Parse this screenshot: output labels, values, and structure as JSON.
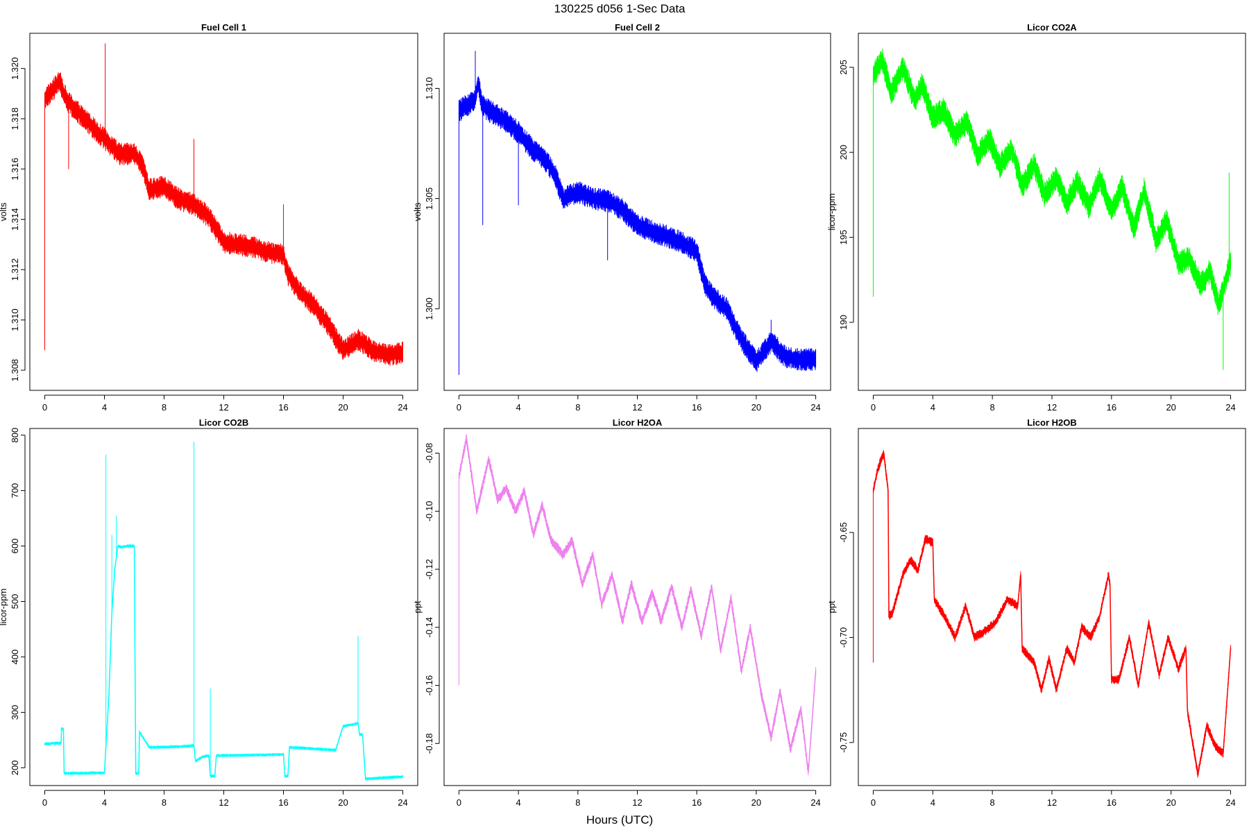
{
  "figure": {
    "title": "130225   d056   1-Sec Data",
    "xlabel": "Hours (UTC)"
  },
  "chart_data": [
    {
      "type": "line",
      "title": "Fuel Cell 1",
      "ylabel": "volts",
      "color": "#ff0000",
      "xlim": [
        -1,
        25
      ],
      "ylim": [
        1.3072,
        1.3214
      ],
      "xticks": [
        0,
        4,
        8,
        12,
        16,
        20,
        24
      ],
      "yticks": [
        1.308,
        1.31,
        1.312,
        1.314,
        1.316,
        1.318,
        1.32
      ],
      "ytick_labels": [
        "1.308",
        "1.310",
        "1.312",
        "1.314",
        "1.316",
        "1.318",
        "1.320"
      ],
      "noise": 0.0003,
      "x": [
        0,
        0.5,
        1,
        1.5,
        2,
        3,
        4,
        5,
        6,
        6.5,
        7,
        8,
        9,
        10,
        11,
        12,
        13,
        14,
        15,
        16,
        16.3,
        17,
        18,
        19,
        20,
        21,
        22,
        23,
        24
      ],
      "y": [
        1.3188,
        1.3191,
        1.3195,
        1.3187,
        1.3184,
        1.3178,
        1.3172,
        1.3166,
        1.3166,
        1.3162,
        1.3152,
        1.3153,
        1.3148,
        1.3146,
        1.3141,
        1.3131,
        1.313,
        1.3129,
        1.3127,
        1.3126,
        1.3118,
        1.3112,
        1.3106,
        1.3098,
        1.3088,
        1.3092,
        1.3088,
        1.3086,
        1.3087
      ],
      "spikes": [
        [
          0,
          1.3088
        ],
        [
          1.6,
          1.316
        ],
        [
          4.05,
          1.321
        ],
        [
          10,
          1.3172
        ],
        [
          16,
          1.3146
        ]
      ]
    },
    {
      "type": "line",
      "title": "Fuel Cell 2",
      "ylabel": "volts",
      "color": "#0000ff",
      "xlim": [
        -1,
        25
      ],
      "ylim": [
        1.2963,
        1.3125
      ],
      "xticks": [
        0,
        4,
        8,
        12,
        16,
        20,
        24
      ],
      "yticks": [
        1.3,
        1.305,
        1.31
      ],
      "ytick_labels": [
        "1.300",
        "1.305",
        "1.310"
      ],
      "noise": 0.00035,
      "x": [
        0,
        0.5,
        1,
        1.3,
        1.6,
        2,
        3,
        4,
        5,
        6,
        6.5,
        7,
        8,
        9,
        10,
        11,
        12,
        13,
        14,
        15,
        16,
        16.5,
        17,
        18,
        19,
        20,
        21,
        22,
        23,
        24
      ],
      "y": [
        1.309,
        1.3092,
        1.3094,
        1.3102,
        1.3092,
        1.309,
        1.3086,
        1.308,
        1.3072,
        1.3066,
        1.306,
        1.305,
        1.3053,
        1.305,
        1.3049,
        1.3045,
        1.3038,
        1.3035,
        1.3033,
        1.303,
        1.3026,
        1.3012,
        1.3006,
        1.3,
        1.2986,
        1.2976,
        1.2985,
        1.2978,
        1.2977,
        1.2977
      ],
      "spikes": [
        [
          0,
          1.297
        ],
        [
          1.1,
          1.3117
        ],
        [
          1.6,
          1.3038
        ],
        [
          4,
          1.3047
        ],
        [
          10,
          1.3022
        ],
        [
          21,
          1.2995
        ]
      ]
    },
    {
      "type": "line",
      "title": "Licor CO2A",
      "ylabel": "licor-ppm",
      "color": "#00ff00",
      "xlim": [
        -1,
        25
      ],
      "ylim": [
        186.0,
        207.0
      ],
      "xticks": [
        0,
        4,
        8,
        12,
        16,
        20,
        24
      ],
      "yticks": [
        190,
        195,
        200,
        205
      ],
      "ytick_labels": [
        "190",
        "195",
        "200",
        "205"
      ],
      "noise": 0.5,
      "x": [
        0,
        0.6,
        1.2,
        2,
        2.8,
        3.3,
        4,
        4.7,
        5.5,
        6.3,
        7,
        7.8,
        8.5,
        9.3,
        10,
        10.8,
        11.5,
        12.3,
        13,
        13.7,
        14.5,
        15.2,
        16,
        16.7,
        17.5,
        18.2,
        19,
        19.7,
        20.5,
        21.2,
        22,
        22.6,
        23.2,
        24
      ],
      "y": [
        204.5,
        205.5,
        203.5,
        205.0,
        203.0,
        204.0,
        202.0,
        202.5,
        201.0,
        201.8,
        199.8,
        200.8,
        199.2,
        200.2,
        198.0,
        199.3,
        197.5,
        198.5,
        197.0,
        198.3,
        196.8,
        198.5,
        196.5,
        198.0,
        195.5,
        197.8,
        194.8,
        196.0,
        193.5,
        193.8,
        192.2,
        193.0,
        191.0,
        193.5
      ],
      "spikes": [
        [
          0,
          191.5
        ],
        [
          23.5,
          187.2
        ],
        [
          23.9,
          198.8
        ]
      ]
    },
    {
      "type": "line",
      "title": "Licor CO2B",
      "ylabel": "licor-ppm",
      "color": "#00ffff",
      "xlim": [
        -1,
        25
      ],
      "ylim": [
        168,
        812
      ],
      "xticks": [
        0,
        4,
        8,
        12,
        16,
        20,
        24
      ],
      "yticks": [
        200,
        300,
        400,
        500,
        600,
        700,
        800
      ],
      "ytick_labels": [
        "200",
        "300",
        "400",
        "500",
        "600",
        "700",
        "800"
      ],
      "noise": 2,
      "x": [
        0,
        1.1,
        1.12,
        1.25,
        1.3,
        4.0,
        4.05,
        4.3,
        4.5,
        4.7,
        4.9,
        5.1,
        5.5,
        6.0,
        6.1,
        6.3,
        6.35,
        7,
        9,
        10,
        10.1,
        10.6,
        11.0,
        11.1,
        11.4,
        11.5,
        16.0,
        16.1,
        16.3,
        16.4,
        19.5,
        20,
        21,
        21.1,
        21.3,
        21.5,
        24
      ],
      "y": [
        243,
        245,
        270,
        270,
        190,
        191,
        215,
        330,
        480,
        560,
        600,
        598,
        600,
        600,
        190,
        190,
        265,
        237,
        238,
        240,
        212,
        220,
        222,
        185,
        185,
        222,
        224,
        185,
        185,
        237,
        232,
        275,
        280,
        260,
        260,
        180,
        184
      ],
      "spikes": [
        [
          4.1,
          765
        ],
        [
          4.5,
          620
        ],
        [
          4.8,
          655
        ],
        [
          10.0,
          788
        ],
        [
          11.1,
          343
        ],
        [
          21.0,
          438
        ]
      ]
    },
    {
      "type": "line",
      "title": "Licor H2OA",
      "ylabel": "ppt",
      "color": "#ee82ee",
      "xlim": [
        -1,
        25
      ],
      "ylim": [
        -0.1945,
        -0.0715
      ],
      "xticks": [
        0,
        4,
        8,
        12,
        16,
        20,
        24
      ],
      "yticks": [
        -0.18,
        -0.16,
        -0.14,
        -0.12,
        -0.1,
        -0.08
      ],
      "ytick_labels": [
        "-0.18",
        "-0.16",
        "-0.14",
        "-0.12",
        "-0.10",
        "-0.08"
      ],
      "noise": 0.0012,
      "x": [
        0,
        0.5,
        1.2,
        2,
        2.6,
        3.2,
        3.8,
        4.4,
        5.0,
        5.6,
        6.2,
        7,
        7.6,
        8.3,
        9,
        9.6,
        10.3,
        11,
        11.6,
        12.3,
        13,
        13.6,
        14.3,
        15,
        15.6,
        16.3,
        17,
        17.6,
        18.3,
        19,
        19.6,
        20.3,
        21,
        21.6,
        22.3,
        23,
        23.5,
        24
      ],
      "y": [
        -0.088,
        -0.075,
        -0.1,
        -0.082,
        -0.096,
        -0.092,
        -0.1,
        -0.093,
        -0.108,
        -0.098,
        -0.11,
        -0.115,
        -0.11,
        -0.125,
        -0.115,
        -0.132,
        -0.122,
        -0.138,
        -0.125,
        -0.138,
        -0.128,
        -0.138,
        -0.126,
        -0.14,
        -0.127,
        -0.143,
        -0.126,
        -0.148,
        -0.13,
        -0.155,
        -0.14,
        -0.162,
        -0.178,
        -0.162,
        -0.182,
        -0.168,
        -0.19,
        -0.155
      ],
      "spikes": [
        [
          0,
          -0.16
        ]
      ]
    },
    {
      "type": "line",
      "title": "Licor H2OB",
      "ylabel": "ppt",
      "color": "#ff0000",
      "xlim": [
        -1,
        25
      ],
      "ylim": [
        -0.7705,
        -0.6005
      ],
      "xticks": [
        0,
        4,
        8,
        12,
        16,
        20,
        24
      ],
      "yticks": [
        -0.75,
        -0.7,
        -0.65
      ],
      "ytick_labels": [
        "-0.75",
        "-0.70",
        "-0.65"
      ],
      "noise": 0.0015,
      "x": [
        0,
        0.3,
        0.7,
        1.0,
        1.05,
        1.3,
        2.0,
        2.5,
        3.0,
        3.5,
        4.0,
        4.1,
        4.8,
        5.5,
        6.2,
        6.8,
        7.5,
        8.2,
        9.0,
        9.7,
        9.9,
        10.0,
        10.8,
        11.3,
        11.8,
        12.3,
        13.0,
        13.5,
        14.0,
        14.6,
        15.2,
        15.8,
        15.9,
        16.0,
        16.5,
        17.2,
        17.8,
        18.5,
        19.2,
        19.8,
        20.5,
        21.0,
        21.1,
        21.8,
        22.4,
        23.0,
        23.5,
        24
      ],
      "y": [
        -0.63,
        -0.62,
        -0.612,
        -0.63,
        -0.69,
        -0.688,
        -0.67,
        -0.663,
        -0.668,
        -0.653,
        -0.655,
        -0.682,
        -0.69,
        -0.7,
        -0.685,
        -0.7,
        -0.697,
        -0.693,
        -0.682,
        -0.685,
        -0.67,
        -0.705,
        -0.712,
        -0.725,
        -0.71,
        -0.725,
        -0.705,
        -0.712,
        -0.695,
        -0.7,
        -0.69,
        -0.67,
        -0.675,
        -0.72,
        -0.72,
        -0.7,
        -0.723,
        -0.693,
        -0.718,
        -0.7,
        -0.715,
        -0.705,
        -0.735,
        -0.765,
        -0.742,
        -0.752,
        -0.755,
        -0.705
      ],
      "spikes": [
        [
          0,
          -0.712
        ]
      ]
    }
  ]
}
